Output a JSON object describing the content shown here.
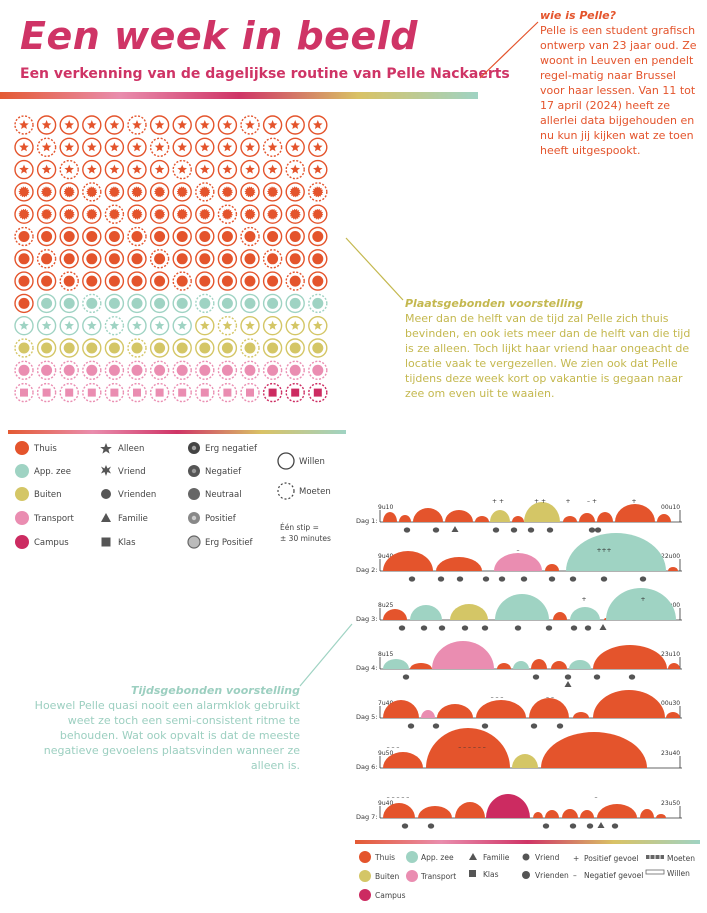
{
  "title": "Een week in beeld",
  "subtitle": "Een verkenning van de dagelijkse routine van Pelle Nackaerts",
  "intro": {
    "heading": "wie is Pelle?",
    "body": "Pelle is een student grafisch ontwerp van 23 jaar oud. Ze woont in Leuven en pendelt regel-matig naar Brussel voor haar lessen. Van 11 tot 17 april (2024) heeft ze allerlei data bijgehouden en nu kun jij kijken wat ze toen heeft uitgespookt."
  },
  "plaats": {
    "heading": "Plaatsgebonden voorstelling",
    "body": "Meer dan de helft van de tijd zal Pelle zich thuis bevinden, en ook iets meer dan de helft van die tijd is ze alleen. Toch lijkt haar vriend haar ongeacht de locatie vaak te vergezellen. We zien ook dat Pelle tijdens deze week kort op vakantie is gegaan naar zee om even uit te waaien."
  },
  "tijd": {
    "heading": "Tijdsgebonden voorstelling",
    "body": "Hoewel Pelle quasi nooit een alarmklok gebruikt weet ze toch een semi-consistent ritme te behouden. Wat ook opvalt is dat de meeste negatieve gevoelens plaatsvinden wanneer ze alleen is."
  },
  "colors": {
    "thuis": "#e4542c",
    "zee": "#9fd3c3",
    "buiten": "#d4c666",
    "transport": "#ea8db1",
    "campus": "#cc2b61"
  },
  "legend": {
    "locaties": [
      "Thuis",
      "App. zee",
      "Buiten",
      "Transport",
      "Campus"
    ],
    "gezelschap": [
      "Alleen",
      "Vriend",
      "Vrienden",
      "Familie",
      "Klas"
    ],
    "gevoel": [
      "Erg negatief",
      "Negatief",
      "Neutraal",
      "Positief",
      "Erg Positief"
    ],
    "willen": "Willen",
    "moeten": "Moeten",
    "stip": "Één stip =",
    "stip2": "± 30 minutes"
  },
  "days": [
    "Dag 1:",
    "Dag 2:",
    "Dag 3:",
    "Dag 4:",
    "Dag 5:",
    "Dag 6:",
    "Dag 7:"
  ],
  "day_start": [
    "9u10",
    "9u40",
    "8u25",
    "8u15",
    "7u40",
    "9u50",
    "9u40"
  ],
  "day_end": [
    "00u10",
    "22u00",
    "22u00",
    "23u10",
    "00u30",
    "23u40",
    "23u50"
  ],
  "legend2": {
    "locaties": [
      "Thuis",
      "App. zee",
      "Buiten",
      "Transport",
      "Campus"
    ],
    "familie": "Familie",
    "klas": "Klas",
    "vriend": "Vriend",
    "vrienden": "Vrienden",
    "positief": "Positief gevoel",
    "negatief": "Negatief gevoel",
    "moeten": "Moeten",
    "willen": "Willen"
  }
}
